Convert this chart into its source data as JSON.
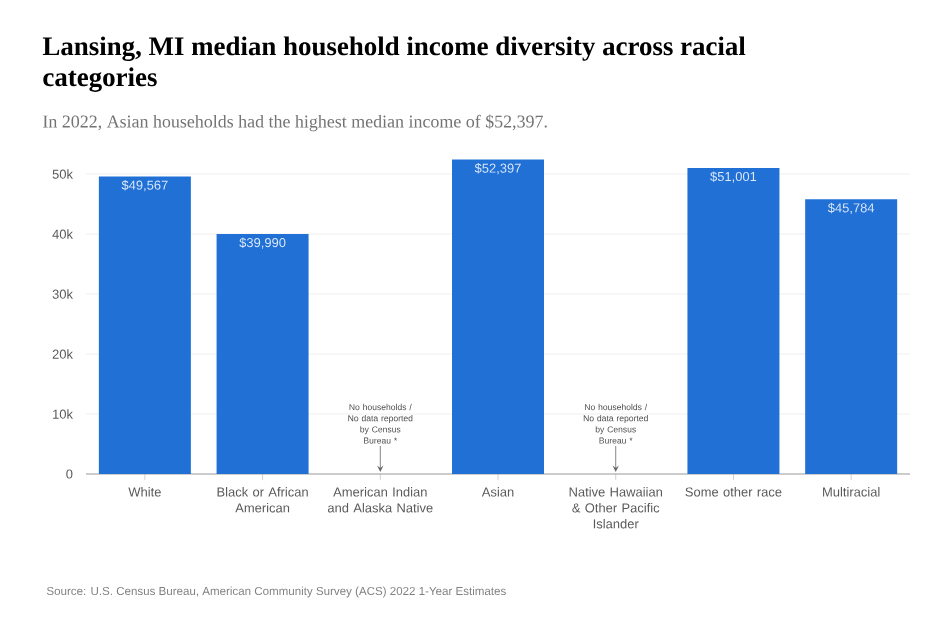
{
  "chart_data": {
    "type": "bar",
    "title": "Lansing, MI median household income diversity across racial categories",
    "subtitle": "In 2022, Asian households had the highest median income of $52,397.",
    "categories": [
      "White",
      "Black or African American",
      "American Indian and Alaska Native",
      "Asian",
      "Native Hawaiian & Other Pacific Islander",
      "Some other race",
      "Multiracial"
    ],
    "values": [
      49567,
      39990,
      null,
      52397,
      null,
      51001,
      45784
    ],
    "value_labels": [
      "$49,567",
      "$39,990",
      null,
      "$52,397",
      null,
      "$51,001",
      "$45,784"
    ],
    "color": "#2170d6",
    "ylim": [
      0,
      53000
    ],
    "yticks": [
      {
        "value": 0,
        "label": "0"
      },
      {
        "value": 10000,
        "label": "10k"
      },
      {
        "value": 20000,
        "label": "20k"
      },
      {
        "value": 30000,
        "label": "30k"
      },
      {
        "value": 40000,
        "label": "40k"
      },
      {
        "value": 50000,
        "label": "50k"
      }
    ],
    "grid": "y",
    "annotations": [
      "No households / No data reported by Census Bureau *",
      "No households / No data reported by Census Bureau *",
      "Source: U.S. Census Bureau, American Community Survey (ACS) 2022 1-Year Estimates"
    ]
  }
}
